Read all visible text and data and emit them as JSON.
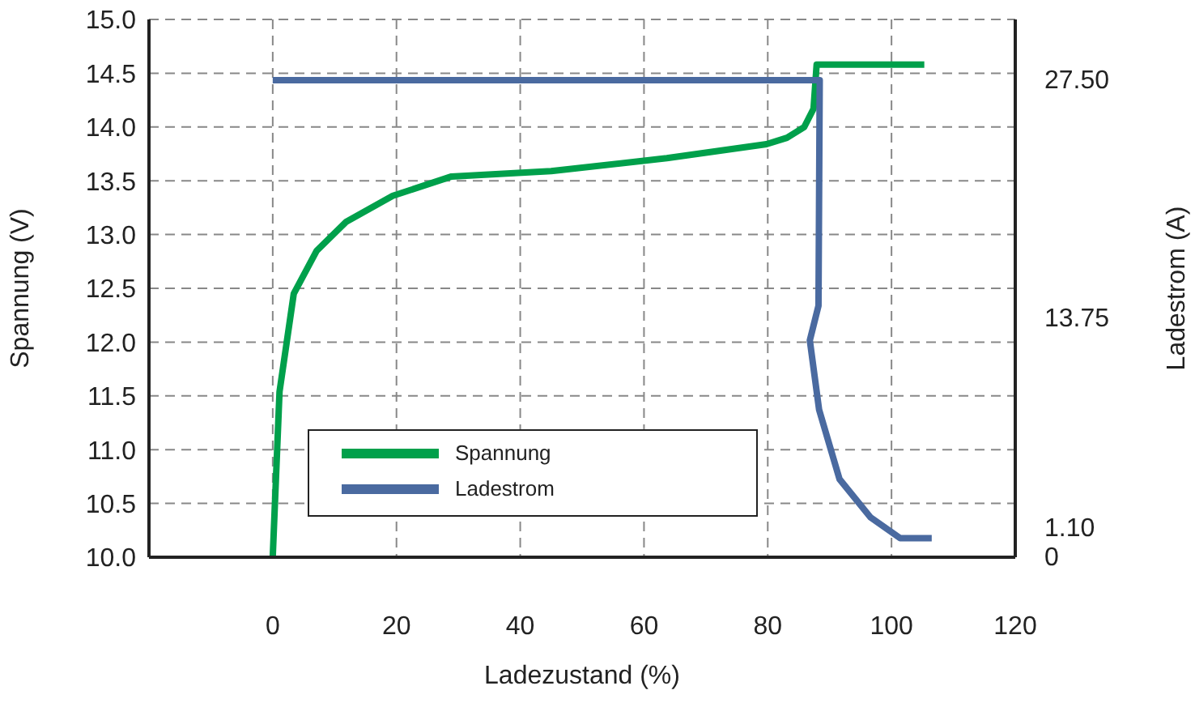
{
  "chart_data": {
    "type": "line",
    "xlabel": "Ladezustand (%)",
    "ylabel": "Spannung (V)",
    "y2label": "Ladestrom (A)",
    "series": [
      {
        "name": "Spannung",
        "color": "#00a04b",
        "x": [
          0,
          1.1,
          3.4,
          7.1,
          11.9,
          19.4,
          28.9,
          45,
          63.7,
          79.8,
          83.1,
          85.9,
          87.4,
          87.9,
          105.3
        ],
        "values": [
          10.0,
          11.54,
          12.45,
          12.85,
          13.12,
          13.36,
          13.54,
          13.59,
          13.71,
          13.84,
          13.9,
          14.0,
          14.17,
          14.58,
          14.58
        ]
      },
      {
        "name": "Ladestrom",
        "color": "#4a6aa0",
        "axis": "y2",
        "x": [
          0,
          88.4,
          88.2,
          86.8,
          88.3,
          91.6,
          96.6,
          101.4,
          106.5
        ],
        "values": [
          27.5,
          27.5,
          14.5,
          12.5,
          8.5,
          4.5,
          2.3,
          1.1,
          1.1
        ]
      }
    ],
    "xlim": [
      -20,
      120
    ],
    "xticks": [
      0,
      20,
      40,
      60,
      80,
      100,
      120
    ],
    "ylim": [
      10,
      15
    ],
    "yticks": [
      {
        "value": 10,
        "label": "10.0"
      },
      {
        "value": 10.5,
        "label": "10.5"
      },
      {
        "value": 11,
        "label": "11.0"
      },
      {
        "value": 11.5,
        "label": "11.5"
      },
      {
        "value": 12,
        "label": "12.0"
      },
      {
        "value": 12.5,
        "label": "12.5"
      },
      {
        "value": 13,
        "label": "13.0"
      },
      {
        "value": 13.5,
        "label": "13.5"
      },
      {
        "value": 14,
        "label": "14.0"
      },
      {
        "value": 14.5,
        "label": "14.5"
      },
      {
        "value": 15,
        "label": "15.0"
      }
    ],
    "y2lim": [
      0,
      31
    ],
    "y2ticks": [
      0,
      {
        "value": 1.1,
        "label": "1.10"
      },
      {
        "value": 13.75,
        "label": "13.75"
      },
      {
        "value": 27.5,
        "label": "27.50"
      }
    ],
    "grid": true,
    "legend": "bottom",
    "marker": "none",
    "line_style": "solid"
  }
}
